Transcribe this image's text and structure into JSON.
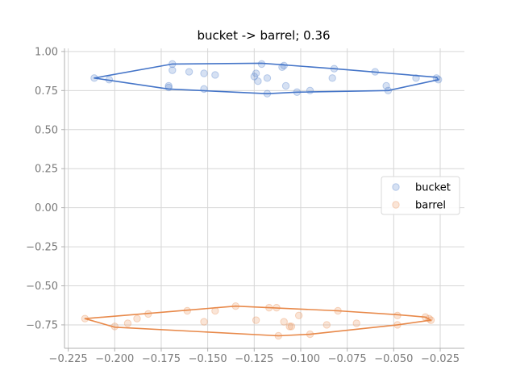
{
  "chart_data": {
    "type": "scatter",
    "title": "bucket -> barrel; 0.36",
    "xlabel": "",
    "ylabel": "",
    "xlim": [
      -0.227,
      -0.012
    ],
    "ylim": [
      -0.9,
      1.02
    ],
    "xticks": [
      -0.225,
      -0.2,
      -0.175,
      -0.15,
      -0.125,
      -0.1,
      -0.075,
      -0.05,
      -0.025
    ],
    "xtick_labels": [
      "−0.225",
      "−0.200",
      "−0.175",
      "−0.150",
      "−0.125",
      "−0.100",
      "−0.075",
      "−0.050",
      "−0.025"
    ],
    "yticks": [
      -0.75,
      -0.5,
      -0.25,
      0.0,
      0.25,
      0.5,
      0.75,
      1.0
    ],
    "ytick_labels": [
      "−0.75",
      "−0.50",
      "−0.25",
      "0.00",
      "0.25",
      "0.50",
      "0.75",
      "1.00"
    ],
    "grid": true,
    "legend_position": "right",
    "series": [
      {
        "name": "bucket",
        "color": "#4575c8",
        "points": [
          [
            -0.211,
            0.83
          ],
          [
            -0.203,
            0.82
          ],
          [
            -0.171,
            0.77
          ],
          [
            -0.171,
            0.78
          ],
          [
            -0.169,
            0.92
          ],
          [
            -0.169,
            0.88
          ],
          [
            -0.16,
            0.87
          ],
          [
            -0.152,
            0.86
          ],
          [
            -0.152,
            0.76
          ],
          [
            -0.146,
            0.85
          ],
          [
            -0.125,
            0.84
          ],
          [
            -0.124,
            0.86
          ],
          [
            -0.123,
            0.81
          ],
          [
            -0.121,
            0.92
          ],
          [
            -0.118,
            0.83
          ],
          [
            -0.118,
            0.73
          ],
          [
            -0.11,
            0.9
          ],
          [
            -0.109,
            0.91
          ],
          [
            -0.108,
            0.78
          ],
          [
            -0.102,
            0.74
          ],
          [
            -0.095,
            0.75
          ],
          [
            -0.083,
            0.83
          ],
          [
            -0.082,
            0.89
          ],
          [
            -0.06,
            0.87
          ],
          [
            -0.054,
            0.78
          ],
          [
            -0.053,
            0.75
          ],
          [
            -0.038,
            0.83
          ],
          [
            -0.027,
            0.83
          ],
          [
            -0.026,
            0.82
          ]
        ],
        "hull": [
          [
            -0.211,
            0.83
          ],
          [
            -0.169,
            0.92
          ],
          [
            -0.121,
            0.925
          ],
          [
            -0.082,
            0.89
          ],
          [
            -0.027,
            0.835
          ],
          [
            -0.026,
            0.82
          ],
          [
            -0.053,
            0.75
          ],
          [
            -0.102,
            0.74
          ],
          [
            -0.118,
            0.73
          ],
          [
            -0.171,
            0.76
          ]
        ]
      },
      {
        "name": "barrel",
        "color": "#e8894a",
        "points": [
          [
            -0.216,
            -0.71
          ],
          [
            -0.2,
            -0.76
          ],
          [
            -0.193,
            -0.74
          ],
          [
            -0.188,
            -0.71
          ],
          [
            -0.182,
            -0.68
          ],
          [
            -0.161,
            -0.66
          ],
          [
            -0.152,
            -0.73
          ],
          [
            -0.146,
            -0.66
          ],
          [
            -0.135,
            -0.63
          ],
          [
            -0.124,
            -0.72
          ],
          [
            -0.117,
            -0.64
          ],
          [
            -0.113,
            -0.64
          ],
          [
            -0.112,
            -0.82
          ],
          [
            -0.109,
            -0.73
          ],
          [
            -0.106,
            -0.76
          ],
          [
            -0.105,
            -0.76
          ],
          [
            -0.101,
            -0.69
          ],
          [
            -0.095,
            -0.81
          ],
          [
            -0.086,
            -0.75
          ],
          [
            -0.08,
            -0.66
          ],
          [
            -0.07,
            -0.74
          ],
          [
            -0.048,
            -0.69
          ],
          [
            -0.048,
            -0.75
          ],
          [
            -0.033,
            -0.7
          ],
          [
            -0.031,
            -0.71
          ],
          [
            -0.03,
            -0.72
          ]
        ],
        "hull": [
          [
            -0.216,
            -0.71
          ],
          [
            -0.135,
            -0.63
          ],
          [
            -0.08,
            -0.66
          ],
          [
            -0.048,
            -0.685
          ],
          [
            -0.033,
            -0.7
          ],
          [
            -0.03,
            -0.72
          ],
          [
            -0.048,
            -0.75
          ],
          [
            -0.095,
            -0.81
          ],
          [
            -0.112,
            -0.82
          ],
          [
            -0.2,
            -0.765
          ]
        ]
      }
    ]
  }
}
